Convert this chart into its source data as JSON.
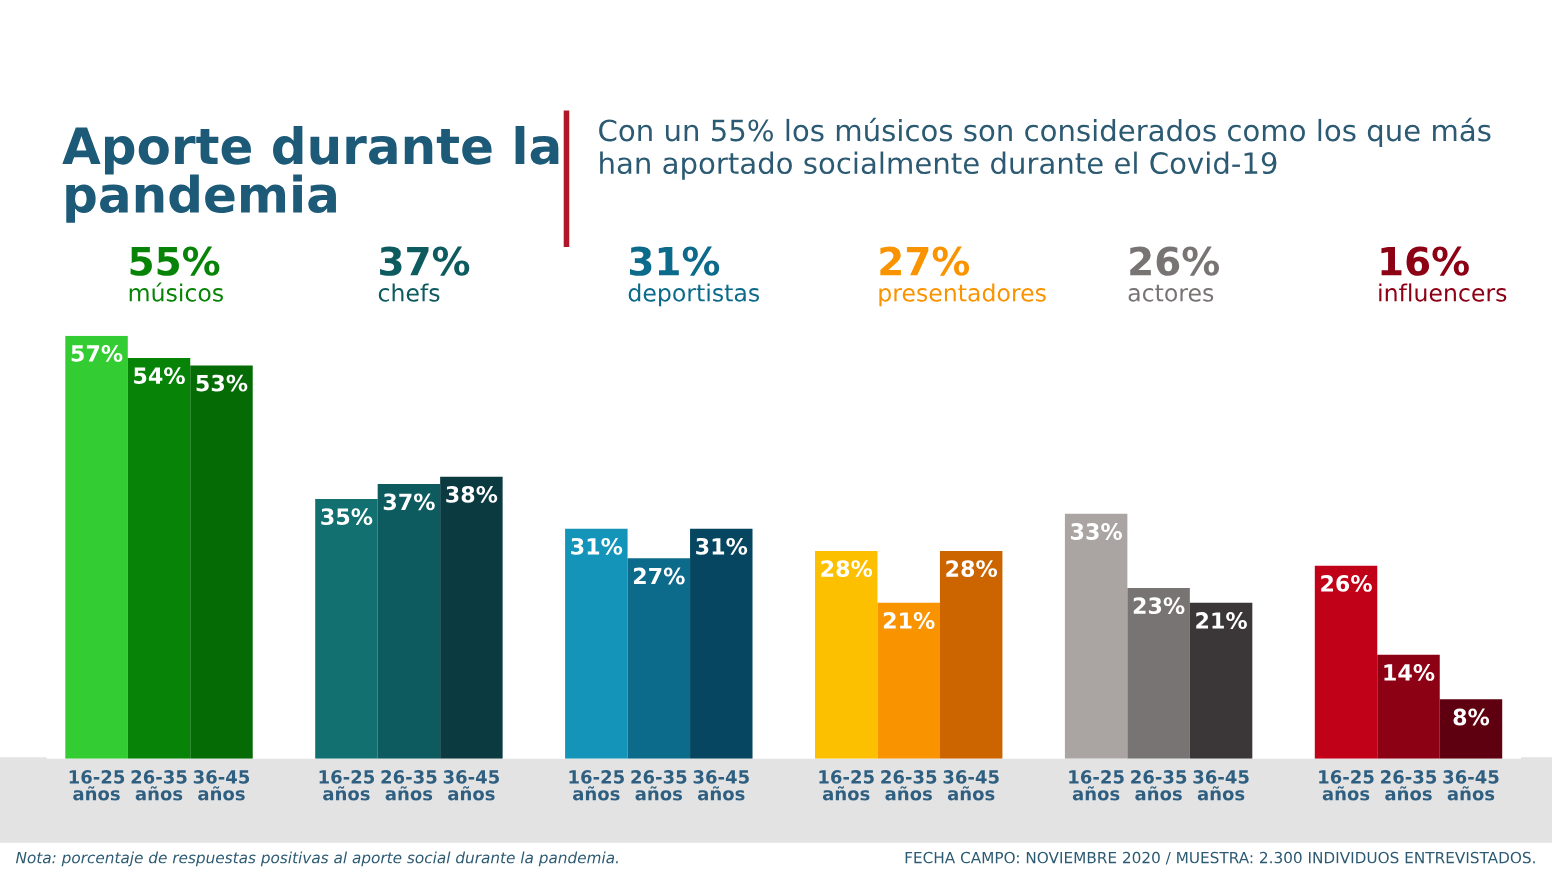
{
  "chart_data": {
    "type": "bar",
    "title": "Aporte durante la pandemia",
    "subtitle": "Con un 55% los músicos son considerados como los que más han aportado socialmente durante el Covid-19",
    "categories": [
      "16-25 años",
      "26-35 años",
      "36-45 años",
      "16-25 años",
      "26-35 años",
      "36-45 años",
      "16-25 años",
      "26-35 años",
      "36-45 años",
      "16-25 años",
      "26-35 años",
      "36-45 años",
      "16-25 años",
      "26-35 años",
      "36-45 años",
      "16-25 años",
      "26-35 años",
      "36-45 años"
    ],
    "values": [
      57,
      54,
      53,
      35,
      37,
      38,
      31,
      27,
      31,
      28,
      21,
      28,
      33,
      23,
      21,
      26,
      14,
      8
    ],
    "colors": [
      "#33cc33",
      "#078407",
      "#056b05",
      "#137070",
      "#0d5a5f",
      "#0b3a40",
      "#1494b8",
      "#0c6a8a",
      "#064660",
      "#fcc000",
      "#fa9300",
      "#cc6500",
      "#aaa5a3",
      "#797474",
      "#3b3738",
      "#c00118",
      "#8d0115",
      "#5e000f"
    ],
    "value_labels": [
      "57%",
      "54%",
      "53%",
      "35%",
      "37%",
      "38%",
      "31%",
      "27%",
      "31%",
      "28%",
      "21%",
      "28%",
      "33%",
      "23%",
      "21%",
      "26%",
      "14%",
      "8%"
    ],
    "annotations": [
      "55%\nmúsicos",
      "37%\nchefs",
      "31%\ndeportistas",
      "27%\npresentadores",
      "26%\nactores",
      "16%\ninfluencers",
      "Nota: porcentaje de respuestas positivas al aporte social durante la pandemia.",
      "FECHA CAMPO: NOVIEMBRE 2020 / MUESTRA: 2.300 INDIVIDUOS ENTREVISTADOS."
    ]
  }
}
